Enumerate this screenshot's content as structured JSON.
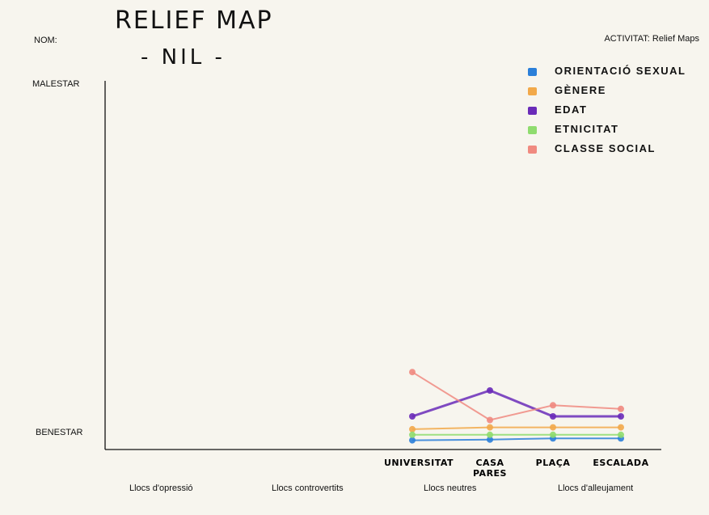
{
  "header": {
    "title": "RELIEF MAP",
    "subtitle": "- NIL -",
    "nom_label": "NOM:",
    "activity": "ACTIVITAT: Relief Maps"
  },
  "axis": {
    "top_label": "MALESTAR",
    "bottom_label": "BENESTAR"
  },
  "zones": [
    "Llocs d'opressió",
    "Llocs controvertits",
    "Llocs neutres",
    "Llocs d'alleujament"
  ],
  "chart_data": {
    "type": "line",
    "title": "RELIEF MAP",
    "ylabel_top": "MALESTAR",
    "ylabel_bottom": "BENESTAR",
    "categories": [
      "UNIVERSITAT",
      "CASA PARES",
      "PLAÇA",
      "ESCALADA"
    ],
    "category_display": [
      "UNIVERSITAT",
      "CASA\nPARES",
      "PLAÇA",
      "ESCALADA"
    ],
    "ylim": [
      0,
      100
    ],
    "series": [
      {
        "name": "ORIENTACIÓ SEXUAL",
        "color": "#2b7fd9",
        "values": [
          2.5,
          2.7,
          3.0,
          3.0
        ]
      },
      {
        "name": "GÈNERE",
        "color": "#f2a94a",
        "values": [
          5.5,
          6.0,
          6.0,
          6.0
        ]
      },
      {
        "name": "EDAT",
        "color": "#6a2bb8",
        "values": [
          9.0,
          16.0,
          9.0,
          9.0
        ]
      },
      {
        "name": "ETNICITAT",
        "color": "#8fdc6e",
        "values": [
          4.0,
          4.0,
          4.0,
          4.0
        ]
      },
      {
        "name": "CLASSE SOCIAL",
        "color": "#f08a80",
        "values": [
          21.0,
          8.0,
          12.0,
          11.0
        ]
      }
    ]
  },
  "legend": [
    {
      "label": "ORIENTACIÓ SEXUAL",
      "color": "#2b7fd9",
      "icon": "blue-square"
    },
    {
      "label": "GÈNERE",
      "color": "#f2a94a",
      "icon": "orange-square"
    },
    {
      "label": "EDAT",
      "color": "#6a2bb8",
      "icon": "purple-square"
    },
    {
      "label": "ETNICITAT",
      "color": "#8fdc6e",
      "icon": "green-square"
    },
    {
      "label": "CLASSE SOCIAL",
      "color": "#f08a80",
      "icon": "salmon-square"
    }
  ]
}
